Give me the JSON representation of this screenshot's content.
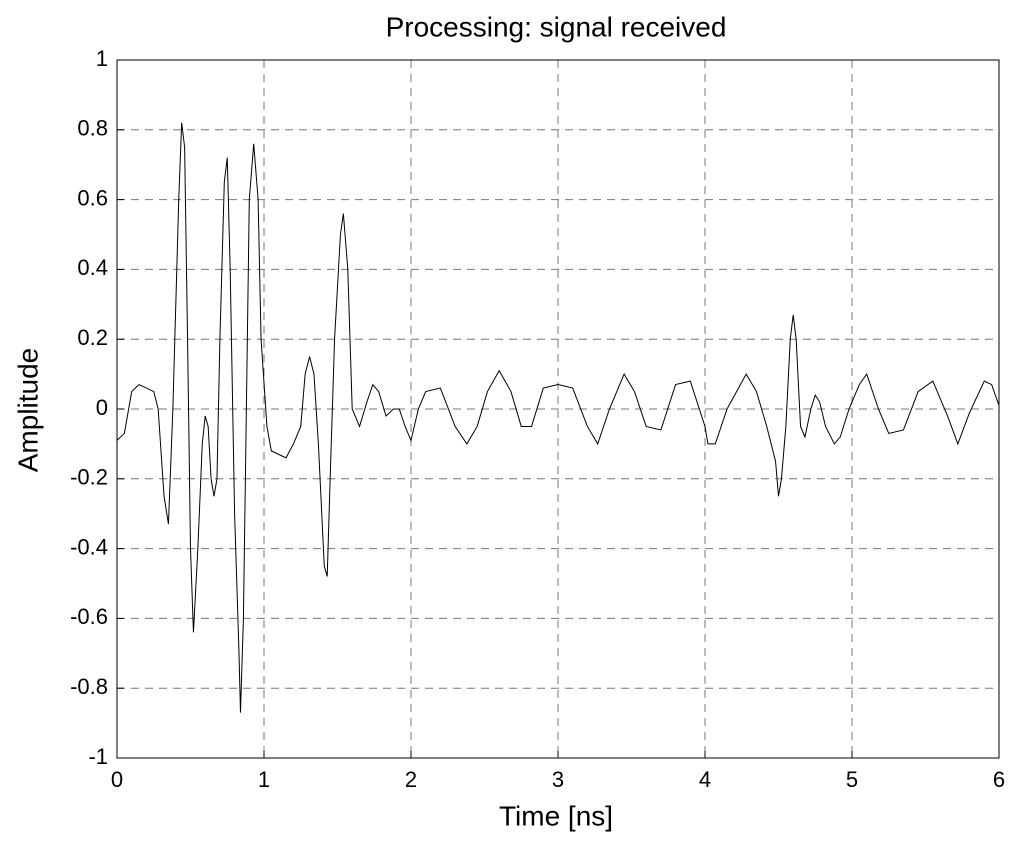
{
  "chart_data": {
    "type": "line",
    "title": "Processing: signal received",
    "xlabel": "Time [ns]",
    "ylabel": "Amplitude",
    "x": [
      0,
      0.05,
      0.1,
      0.15,
      0.25,
      0.28,
      0.32,
      0.35,
      0.38,
      0.42,
      0.44,
      0.46,
      0.48,
      0.5,
      0.52,
      0.55,
      0.58,
      0.6,
      0.62,
      0.64,
      0.66,
      0.68,
      0.7,
      0.73,
      0.75,
      0.77,
      0.8,
      0.83,
      0.84,
      0.86,
      0.88,
      0.9,
      0.93,
      0.96,
      0.98,
      1.02,
      1.05,
      1.1,
      1.15,
      1.2,
      1.25,
      1.28,
      1.31,
      1.34,
      1.37,
      1.41,
      1.43,
      1.45,
      1.48,
      1.52,
      1.54,
      1.57,
      1.6,
      1.65,
      1.7,
      1.74,
      1.78,
      1.83,
      1.88,
      1.92,
      1.96,
      2.0,
      2.05,
      2.1,
      2.2,
      2.3,
      2.38,
      2.45,
      2.52,
      2.6,
      2.68,
      2.75,
      2.82,
      2.9,
      3.0,
      3.1,
      3.2,
      3.27,
      3.35,
      3.45,
      3.52,
      3.6,
      3.7,
      3.8,
      3.9,
      4.0,
      4.02,
      4.07,
      4.15,
      4.28,
      4.35,
      4.42,
      4.48,
      4.5,
      4.52,
      4.55,
      4.58,
      4.6,
      4.62,
      4.65,
      4.68,
      4.72,
      4.75,
      4.78,
      4.82,
      4.88,
      4.92,
      4.98,
      5.05,
      5.1,
      5.18,
      5.25,
      5.35,
      5.45,
      5.55,
      5.65,
      5.72,
      5.8,
      5.9,
      5.95,
      6.0
    ],
    "series": [
      {
        "name": "signal",
        "color": "#000000",
        "values": [
          -0.09,
          -0.07,
          0.05,
          0.07,
          0.05,
          0.0,
          -0.25,
          -0.33,
          0.0,
          0.6,
          0.82,
          0.75,
          0.2,
          -0.4,
          -0.64,
          -0.4,
          -0.1,
          -0.02,
          -0.05,
          -0.2,
          -0.25,
          -0.2,
          0.2,
          0.65,
          0.72,
          0.4,
          -0.3,
          -0.7,
          -0.87,
          -0.6,
          0.0,
          0.6,
          0.76,
          0.6,
          0.2,
          -0.05,
          -0.12,
          -0.13,
          -0.14,
          -0.1,
          -0.05,
          0.1,
          0.15,
          0.1,
          -0.1,
          -0.45,
          -0.48,
          -0.2,
          0.2,
          0.5,
          0.56,
          0.4,
          0.0,
          -0.05,
          0.02,
          0.07,
          0.05,
          -0.02,
          0.0,
          0.0,
          -0.05,
          -0.09,
          0.0,
          0.05,
          0.06,
          -0.05,
          -0.1,
          -0.05,
          0.05,
          0.11,
          0.05,
          -0.05,
          -0.05,
          0.06,
          0.07,
          0.06,
          -0.05,
          -0.1,
          0.0,
          0.1,
          0.05,
          -0.05,
          -0.06,
          0.07,
          0.08,
          -0.05,
          -0.1,
          -0.1,
          0.0,
          0.1,
          0.05,
          -0.05,
          -0.15,
          -0.25,
          -0.2,
          -0.05,
          0.2,
          0.27,
          0.2,
          -0.05,
          -0.08,
          0.0,
          0.04,
          0.02,
          -0.05,
          -0.1,
          -0.08,
          0.0,
          0.07,
          0.1,
          0.0,
          -0.07,
          -0.06,
          0.05,
          0.08,
          -0.02,
          -0.1,
          -0.01,
          0.08,
          0.07,
          0.01
        ]
      }
    ],
    "xlim": [
      0,
      6
    ],
    "xticks": [
      0,
      1,
      2,
      3,
      4,
      5,
      6
    ],
    "ylim": [
      -1,
      1
    ],
    "yticks": [
      -1,
      -0.8,
      -0.6,
      -0.4,
      -0.2,
      0,
      0.2,
      0.4,
      0.6,
      0.8,
      1
    ],
    "grid": true
  }
}
